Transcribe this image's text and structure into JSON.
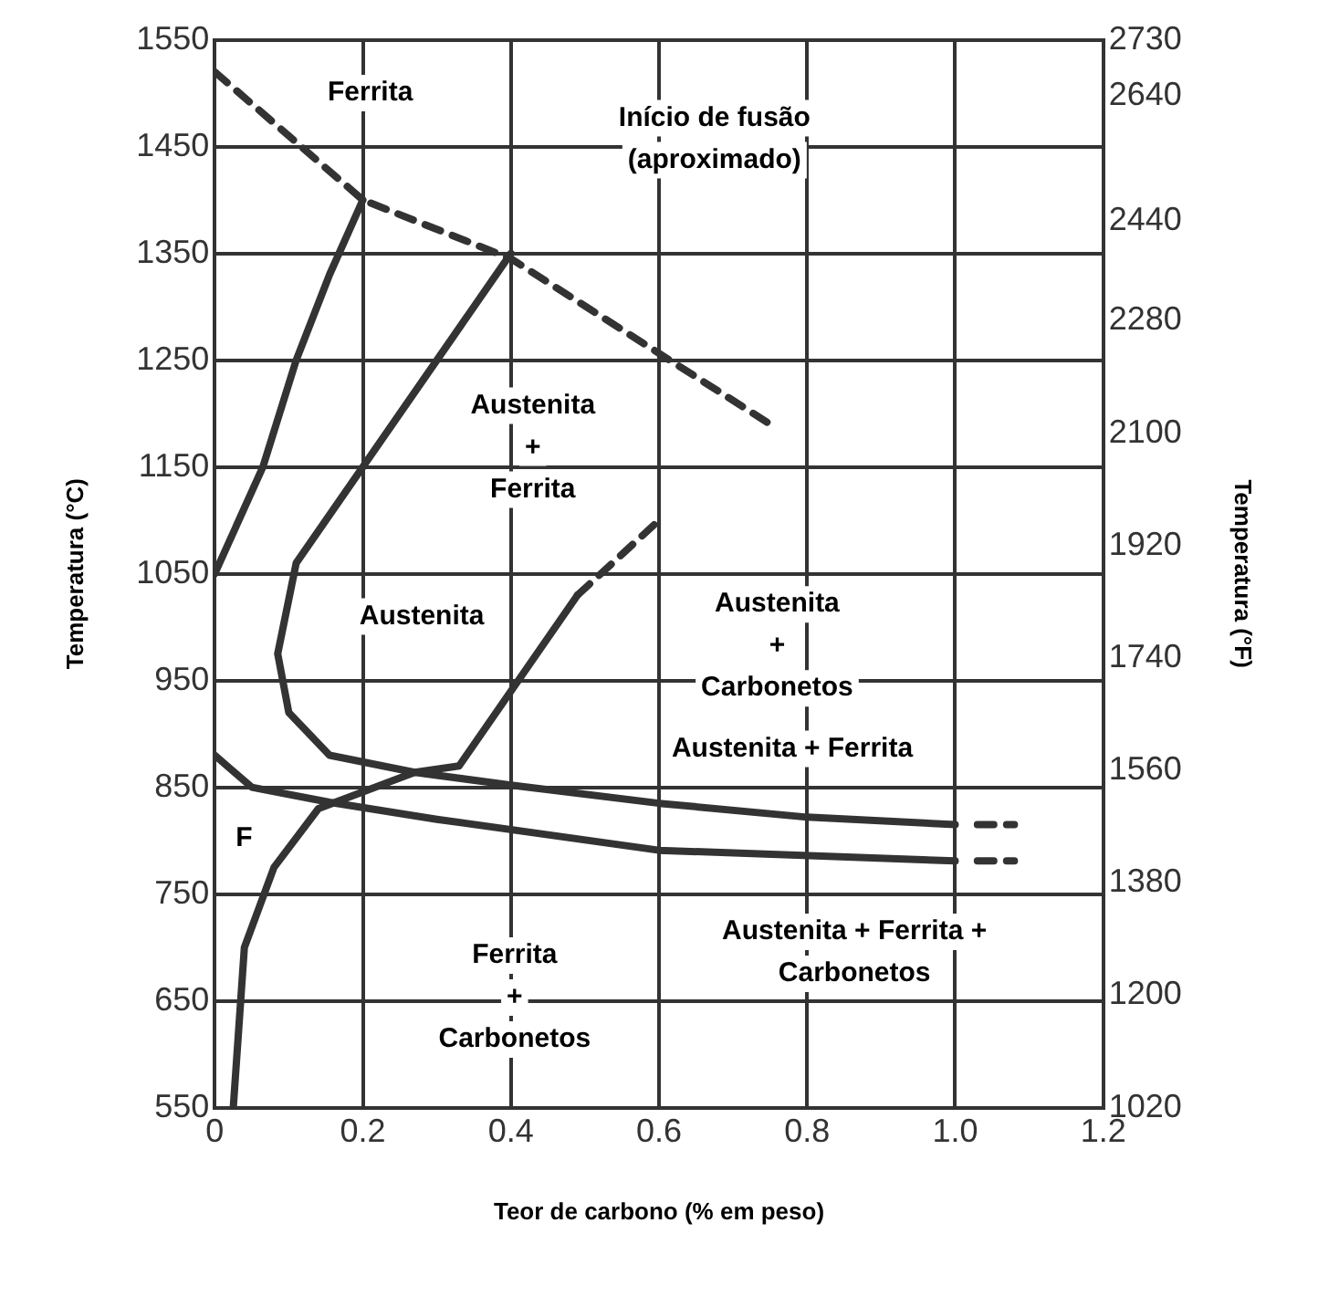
{
  "chart_data": {
    "type": "line",
    "xlabel": "Teor de carbono (% em peso)",
    "ylabel": "Temperatura (°C)",
    "y2label": "Temperatura (°F)",
    "xlim": [
      0,
      1.2
    ],
    "xticks": [
      0,
      0.2,
      0.4,
      0.6,
      0.8,
      {
        "value": 1,
        "label": "1.0"
      },
      1.2
    ],
    "ylim": [
      550,
      1550
    ],
    "yticks": [
      550,
      650,
      750,
      850,
      950,
      1050,
      1150,
      1250,
      1350,
      1450,
      1550
    ],
    "y2lim": [
      1020,
      2730
    ],
    "y2ticks": [
      1020,
      1200,
      1380,
      1560,
      1740,
      1920,
      2100,
      2280,
      2440,
      2640,
      2730
    ],
    "grid": true,
    "legend": false,
    "marker": "none",
    "series": [
      {
        "color": "#333333",
        "line_style": "dashed",
        "x": [
          0,
          0.2,
          0.4,
          0.75
        ],
        "values": [
          1520,
          1400,
          1345,
          1190
        ]
      },
      {
        "color": "#333333",
        "line_style": "solid",
        "x": [
          0,
          0.065,
          0.11,
          0.155,
          0.2
        ],
        "values": [
          1050,
          1150,
          1250,
          1330,
          1400
        ]
      },
      {
        "color": "#333333",
        "line_style": "solid",
        "x": [
          0.4,
          0.3,
          0.2,
          0.11,
          0.085,
          0.1,
          0.155,
          0.27,
          0.4,
          0.6,
          0.8,
          1.0
        ],
        "values": [
          1350,
          1250,
          1150,
          1060,
          975,
          920,
          880,
          864,
          852,
          835,
          822,
          815
        ]
      },
      {
        "color": "#333333",
        "line_style": "solid",
        "x": [
          0,
          0.05,
          0.155,
          0.3,
          0.6,
          1.0
        ],
        "values": [
          880,
          850,
          836,
          820,
          791,
          781
        ]
      },
      {
        "color": "#333333",
        "line_style": "solid",
        "x": [
          0.025,
          0.04,
          0.08,
          0.14,
          0.27,
          0.33,
          0.49
        ],
        "values": [
          550,
          700,
          775,
          830,
          864,
          870,
          1030
        ]
      },
      {
        "color": "#333333",
        "line_style": "dashed",
        "x": [
          0.49,
          0.6
        ],
        "values": [
          1030,
          1100
        ]
      },
      {
        "color": "#333333",
        "line_style": "dashed",
        "x": [
          1.03,
          1.08
        ],
        "values": [
          815,
          815
        ]
      },
      {
        "color": "#333333",
        "line_style": "dashed",
        "x": [
          1.03,
          1.08
        ],
        "values": [
          781,
          781
        ]
      }
    ],
    "annotations": [
      "Ferrita",
      "Início de fusão\n(aproximado)",
      "Austenita\n+\nFerrita",
      "Austenita",
      "Austenita\n+\nCarbonetos",
      "Austenita + Ferrita",
      "F",
      "Ferrita\n+\nCarbonetos",
      "Austenita + Ferrita +\nCarbonetos"
    ]
  }
}
